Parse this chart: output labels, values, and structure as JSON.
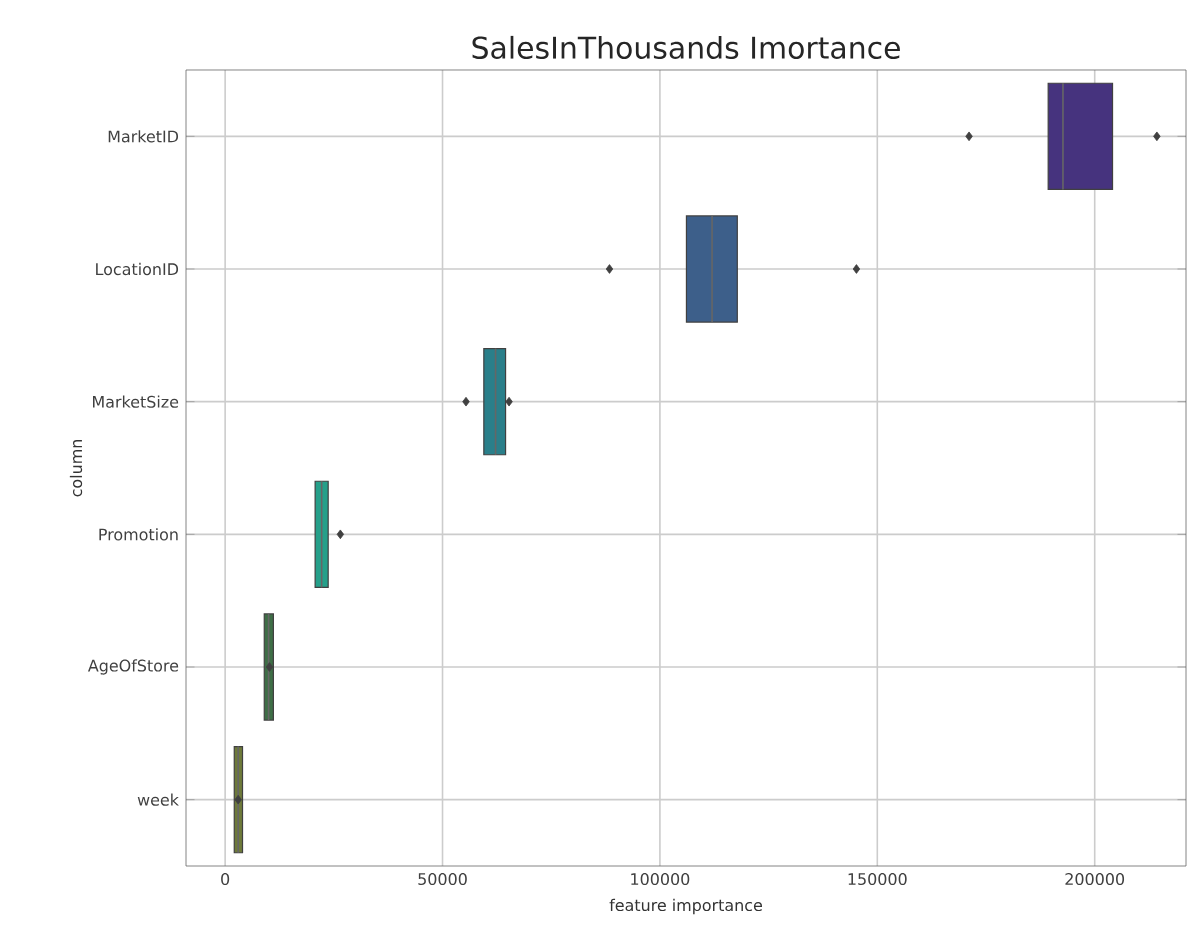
{
  "chart_data": {
    "type": "box",
    "orientation": "horizontal",
    "title": "SalesInThousands Imortance",
    "xlabel": "feature importance",
    "ylabel": "column",
    "categories": [
      "MarketID",
      "LocationID",
      "MarketSize",
      "Promotion",
      "AgeOfStore",
      "week"
    ],
    "colors": [
      "#46337e",
      "#3d5f8a",
      "#2a7f8a",
      "#25a08a",
      "#3e6e46",
      "#6e7a3a"
    ],
    "boxes": [
      {
        "low": 189300,
        "q1": 189300,
        "median": 192700,
        "q3": 204100,
        "high": 204100,
        "outliers": [
          171100,
          214300
        ]
      },
      {
        "low": 106100,
        "q1": 106100,
        "median": 112000,
        "q3": 117800,
        "high": 117800,
        "outliers": [
          88400,
          145200
        ]
      },
      {
        "low": 59500,
        "q1": 59500,
        "median": 62200,
        "q3": 64500,
        "high": 64500,
        "outliers": [
          55400,
          65300
        ]
      },
      {
        "low": 20700,
        "q1": 20700,
        "median": 22200,
        "q3": 23700,
        "high": 23700,
        "outliers": [
          26500
        ]
      },
      {
        "low": 9000,
        "q1": 9000,
        "median": 10000,
        "q3": 11100,
        "high": 11100,
        "outliers": [
          10200
        ]
      },
      {
        "low": 2100,
        "q1": 2100,
        "median": 3000,
        "q3": 4000,
        "high": 4000,
        "outliers": [
          3000
        ]
      }
    ],
    "xlim": [
      -9000,
      221000
    ],
    "xticks": [
      0,
      50000,
      100000,
      150000,
      200000
    ],
    "grid": true,
    "marker": "diamond"
  }
}
